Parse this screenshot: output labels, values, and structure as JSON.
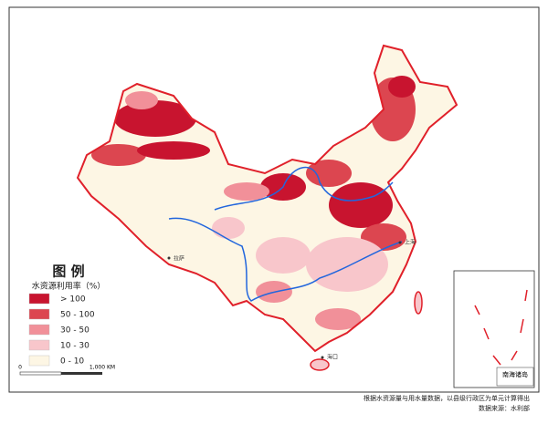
{
  "legend": {
    "title": "图  例",
    "subtitle": "水资源利用率（%）",
    "items": [
      {
        "label": "> 100",
        "color": "#c8142f"
      },
      {
        "label": "50 - 100",
        "color": "#dc4650"
      },
      {
        "label": "30 - 50",
        "color": "#f19099"
      },
      {
        "label": "10 - 30",
        "color": "#f8c6cb"
      },
      {
        "label": "0 - 10",
        "color": "#fdf6e4"
      }
    ]
  },
  "scale": {
    "start": "0",
    "end": "1,000 KM"
  },
  "places": [
    "拉萨",
    "上海",
    "海口"
  ],
  "inset": {
    "label": "南海诸岛"
  },
  "footnote": [
    "根据水资源量与用水量数据，以县级行政区为单元计算得出",
    "数据来源：水利部"
  ]
}
